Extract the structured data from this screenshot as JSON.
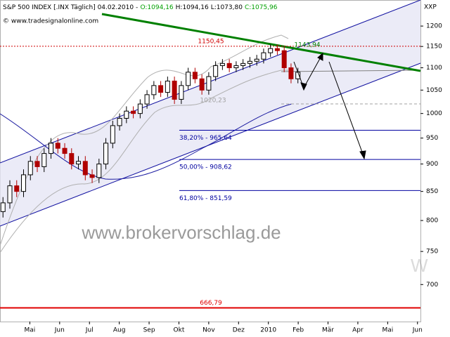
{
  "chart_data": {
    "type": "candlestick",
    "title": "S&P 500 INDEX [.INX Täglich] 04.02.2010 -",
    "quote": [
      {
        "label": "O:1094,16",
        "color": "#00a000"
      },
      {
        "label": "H:1094,16",
        "color": "#000000"
      },
      {
        "label": "L:1073,80",
        "color": "#000000"
      },
      {
        "label": "C:1075,96",
        "color": "#00a000"
      }
    ],
    "source": "© www.tradesignalonline.com",
    "symbol": "XXP",
    "watermark": "www.brokervorschlag.de",
    "watermark_fragment": "W",
    "log_scale": true,
    "grid": false,
    "ylim": [
      648,
      1267
    ],
    "yticks": [
      700,
      750,
      800,
      850,
      900,
      950,
      1000,
      1050,
      1100,
      1150,
      1200
    ],
    "xlim": [
      0,
      14.1
    ],
    "xticks": [
      {
        "value": 1,
        "label": "Mai"
      },
      {
        "value": 2,
        "label": "Jun"
      },
      {
        "value": 3,
        "label": "Jul"
      },
      {
        "value": 4,
        "label": "Aug"
      },
      {
        "value": 5,
        "label": "Sep"
      },
      {
        "value": 6,
        "label": "Okt"
      },
      {
        "value": 7,
        "label": "Nov"
      },
      {
        "value": 8,
        "label": "Dez"
      },
      {
        "value": 9,
        "label": "2010"
      },
      {
        "value": 10,
        "label": "Feb"
      },
      {
        "value": 11,
        "label": "Mär"
      },
      {
        "value": 12,
        "label": "Apr"
      },
      {
        "value": 13,
        "label": "Mai"
      },
      {
        "value": 14,
        "label": "Jun"
      }
    ],
    "x": [
      0.1,
      0.33,
      0.56,
      0.79,
      1.02,
      1.25,
      1.48,
      1.71,
      1.94,
      2.17,
      2.4,
      2.63,
      2.86,
      3.09,
      3.32,
      3.55,
      3.78,
      4.01,
      4.24,
      4.47,
      4.7,
      4.93,
      5.16,
      5.39,
      5.62,
      5.85,
      6.08,
      6.31,
      6.54,
      6.77,
      7.0,
      7.23,
      7.46,
      7.69,
      7.92,
      8.15,
      8.38,
      8.61,
      8.84,
      9.07,
      9.3,
      9.53,
      9.76,
      9.99
    ],
    "open": [
      815,
      830,
      860,
      850,
      880,
      905,
      895,
      920,
      940,
      930,
      920,
      900,
      905,
      880,
      875,
      900,
      940,
      975,
      990,
      1005,
      1000,
      1020,
      1040,
      1060,
      1045,
      1070,
      1030,
      1060,
      1090,
      1075,
      1050,
      1080,
      1105,
      1110,
      1100,
      1105,
      1110,
      1115,
      1120,
      1135,
      1145,
      1140,
      1100,
      1075
    ],
    "high": [
      840,
      870,
      870,
      890,
      915,
      915,
      930,
      950,
      950,
      940,
      930,
      915,
      915,
      890,
      910,
      950,
      985,
      1000,
      1015,
      1015,
      1030,
      1050,
      1070,
      1070,
      1080,
      1080,
      1070,
      1100,
      1100,
      1085,
      1090,
      1115,
      1120,
      1120,
      1115,
      1120,
      1125,
      1130,
      1145,
      1155,
      1155,
      1150,
      1110,
      1100
    ],
    "low": [
      805,
      820,
      840,
      840,
      870,
      885,
      885,
      910,
      920,
      910,
      890,
      890,
      870,
      865,
      865,
      890,
      930,
      965,
      980,
      990,
      990,
      1010,
      1030,
      1035,
      1035,
      1020,
      1020,
      1050,
      1065,
      1040,
      1040,
      1070,
      1095,
      1090,
      1090,
      1095,
      1100,
      1105,
      1110,
      1125,
      1130,
      1090,
      1065,
      1065
    ],
    "close": [
      830,
      860,
      850,
      880,
      905,
      895,
      920,
      940,
      930,
      920,
      900,
      905,
      880,
      875,
      900,
      940,
      975,
      990,
      1005,
      1000,
      1020,
      1040,
      1060,
      1045,
      1070,
      1030,
      1060,
      1090,
      1075,
      1050,
      1080,
      1105,
      1110,
      1100,
      1105,
      1110,
      1115,
      1120,
      1135,
      1145,
      1140,
      1100,
      1075,
      1090
    ],
    "up_color": "#ffffff",
    "down_color": "#b00000",
    "levels": [
      {
        "value": 1150.45,
        "label": "1150,45",
        "color": "#d00000"
      },
      {
        "value": 1143.94,
        "label": "1143,94",
        "color": "#008000"
      },
      {
        "value": 1020.23,
        "label": "1020,23",
        "color": "#a0a0a0"
      },
      {
        "value": 965.64,
        "label": "38,20% - 965,64",
        "color": "#0000a0"
      },
      {
        "value": 908.62,
        "label": "50,00% - 908,62",
        "color": "#0000a0"
      },
      {
        "value": 851.59,
        "label": "61,80% - 851,59",
        "color": "#0000a0"
      },
      {
        "value": 666.79,
        "label": "666,79",
        "color": "#e00000"
      }
    ]
  }
}
